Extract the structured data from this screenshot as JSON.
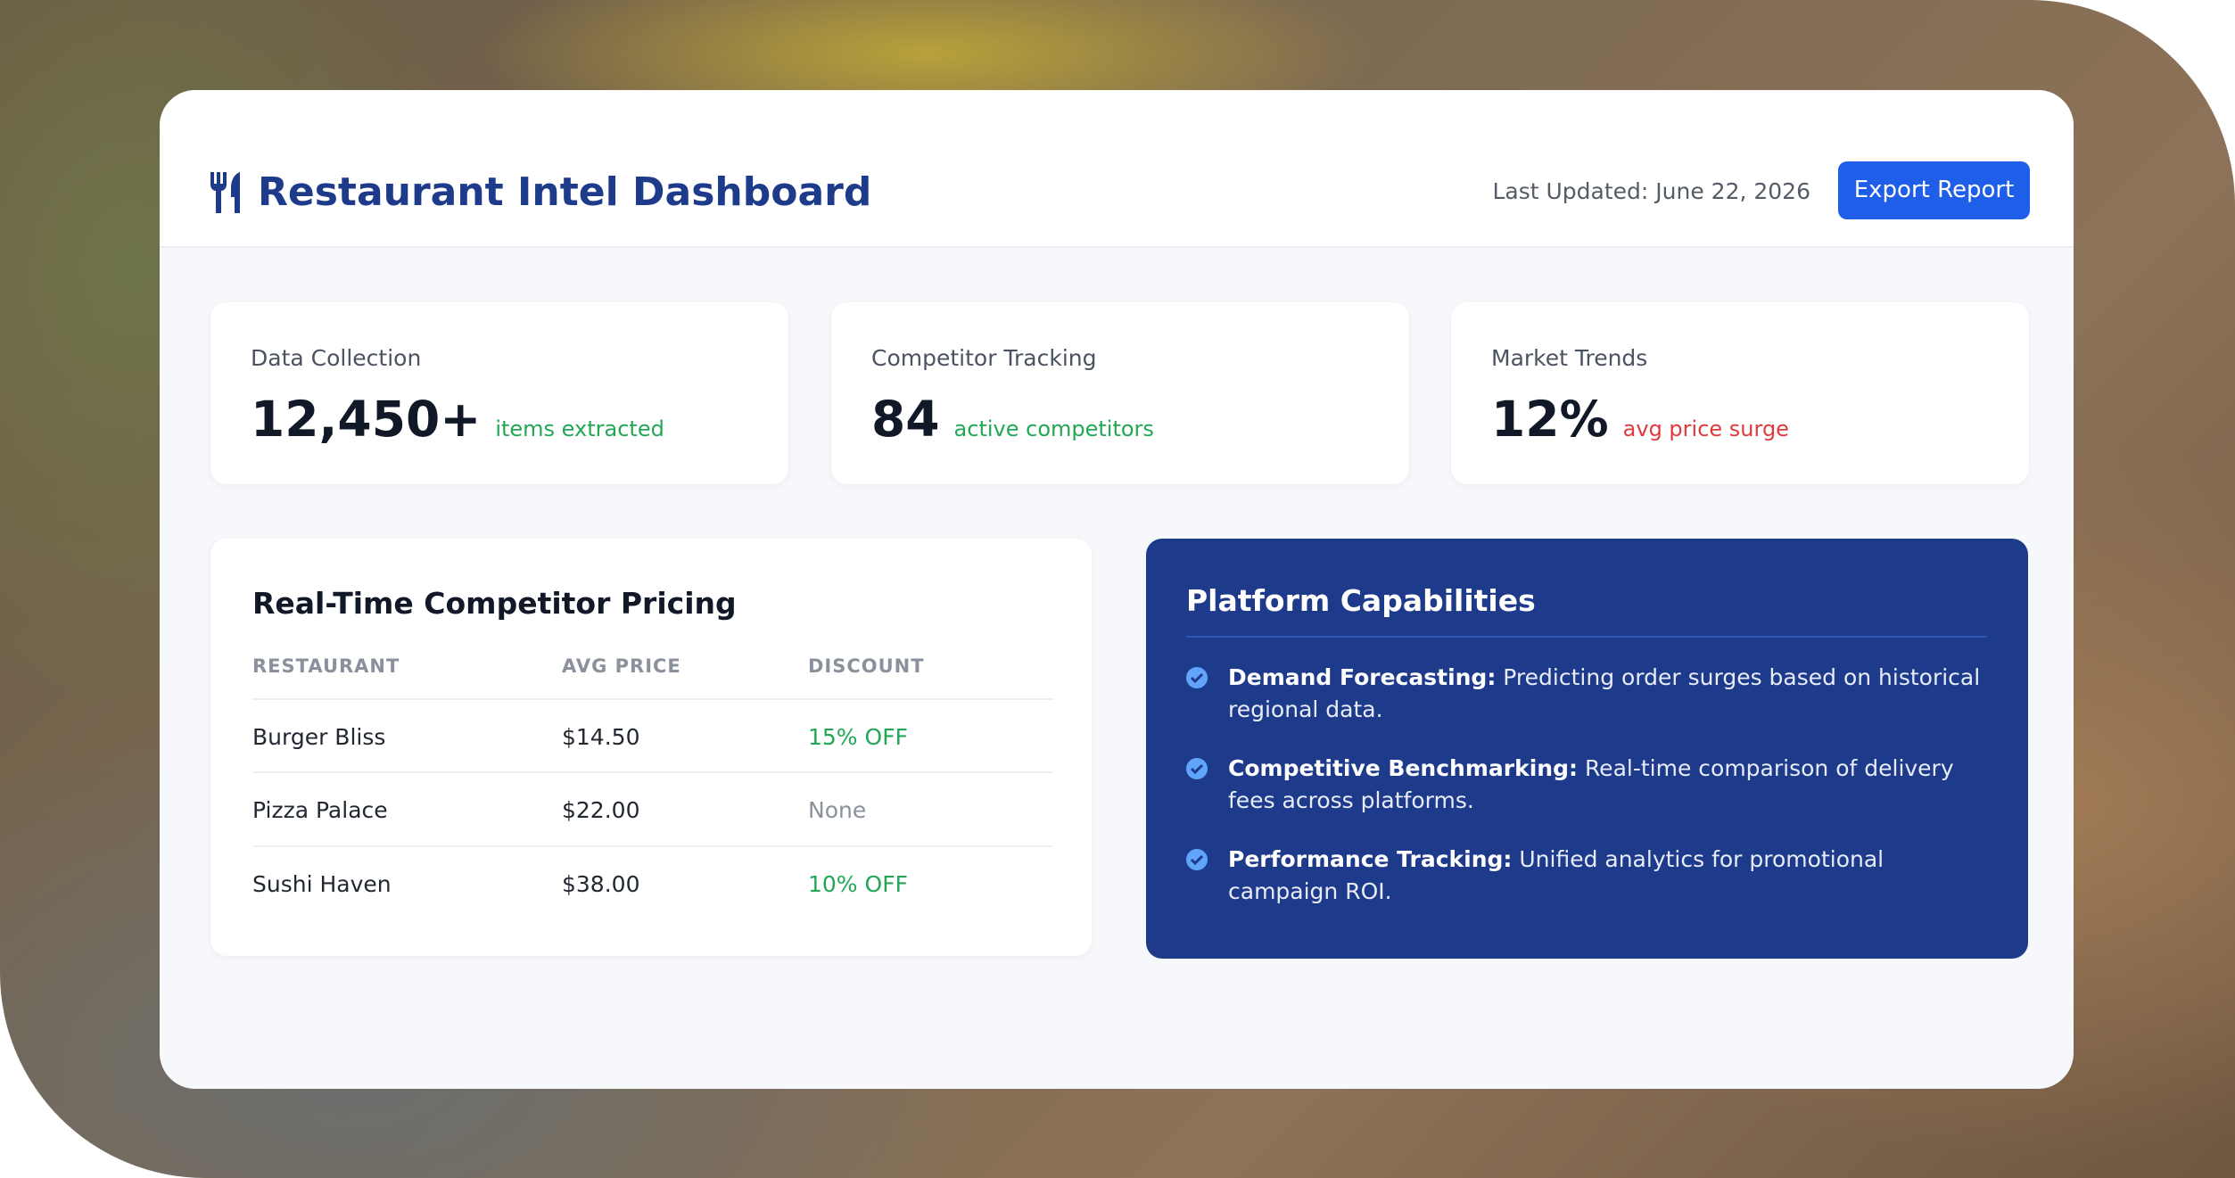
{
  "header": {
    "title": "Restaurant Intel Dashboard",
    "last_updated": "Last Updated: June 22, 2026",
    "button": "Export Report"
  },
  "stats": [
    {
      "label": "Data Collection",
      "value": "12,450+",
      "note": "items extracted"
    },
    {
      "label": "Competitor Tracking",
      "value": "84",
      "note": "active competitors"
    },
    {
      "label": "Market Trends",
      "value": "12%",
      "note": "avg price surge"
    }
  ],
  "table": {
    "title": "Real-Time Competitor Pricing",
    "columns": [
      "RESTAURANT",
      "AVG PRICE",
      "DISCOUNT"
    ],
    "rows": [
      [
        "Burger Bliss",
        "$14.50",
        "15% OFF"
      ],
      [
        "Pizza Palace",
        "$22.00",
        "None"
      ],
      [
        "Sushi Haven",
        "$38.00",
        "10% OFF"
      ]
    ]
  },
  "capabilities": {
    "title": "Platform Capabilities",
    "items": [
      {
        "title": "Demand Forecasting:",
        "text": "Predicting order surges based on historical regional data."
      },
      {
        "title": "Competitive Benchmarking:",
        "text": "Real-time comparison of delivery fees across platforms."
      },
      {
        "title": "Performance Tracking:",
        "text": "Unified analytics for promotional campaign ROI."
      }
    ]
  }
}
